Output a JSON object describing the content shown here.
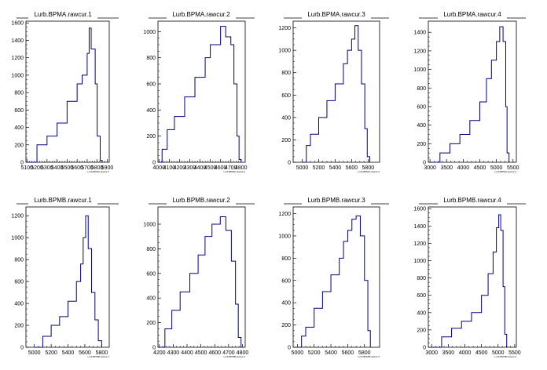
{
  "chart_data": [
    {
      "type": "histogram",
      "title": "Lurb.BPMA.rawcur.1",
      "xlabel": "Lurb.BPMA.rawcur.1",
      "xlim": [
        5090,
        5920
      ],
      "ylim": [
        0,
        1620
      ],
      "xticks": [
        5100,
        5200,
        5300,
        5400,
        5500,
        5600,
        5700,
        5800,
        5900
      ],
      "yticks": [
        0,
        200,
        400,
        600,
        800,
        1000,
        1200,
        1400,
        1600
      ],
      "series": [
        {
          "x": [
            5100,
            5200,
            5300,
            5400,
            5500,
            5600,
            5650,
            5700,
            5720,
            5740,
            5780,
            5800,
            5830,
            5850
          ],
          "y": [
            0,
            200,
            300,
            450,
            700,
            900,
            1000,
            1250,
            1540,
            1300,
            900,
            300,
            20,
            0
          ]
        }
      ]
    },
    {
      "type": "histogram",
      "title": "Lurb.BPMA.rawcur.2",
      "xlabel": "Lurb.BPMA.rawcur.2",
      "xlim": [
        3990,
        4840
      ],
      "ylim": [
        0,
        1080
      ],
      "xticks": [
        4000,
        4100,
        4200,
        4300,
        4400,
        4500,
        4600,
        4700,
        4800
      ],
      "yticks": [
        0,
        200,
        400,
        600,
        800,
        1000
      ],
      "series": [
        {
          "x": [
            4000,
            4030,
            4080,
            4150,
            4250,
            4350,
            4450,
            4500,
            4600,
            4650,
            4700,
            4730,
            4760,
            4780,
            4800
          ],
          "y": [
            0,
            100,
            250,
            350,
            500,
            650,
            800,
            900,
            1040,
            960,
            900,
            600,
            200,
            20,
            0
          ]
        }
      ]
    },
    {
      "type": "histogram",
      "title": "Lurb.BPMA.rawcur.3",
      "xlabel": "Lurb.BPMA.rawcur.3",
      "xlim": [
        4890,
        5940
      ],
      "ylim": [
        0,
        1260
      ],
      "xticks": [
        5000,
        5200,
        5400,
        5600,
        5800
      ],
      "yticks": [
        0,
        200,
        400,
        600,
        800,
        1000,
        1200
      ],
      "series": [
        {
          "x": [
            5000,
            5050,
            5100,
            5200,
            5300,
            5400,
            5500,
            5550,
            5600,
            5640,
            5680,
            5720,
            5760,
            5790,
            5820
          ],
          "y": [
            0,
            150,
            250,
            400,
            550,
            700,
            880,
            1000,
            1100,
            1220,
            1000,
            700,
            300,
            50,
            0
          ]
        }
      ]
    },
    {
      "type": "histogram",
      "title": "Lurb.BPMA.rawcur.4",
      "xlabel": "Lurb.BPMA.rawcur.4",
      "xlim": [
        2950,
        5600
      ],
      "ylim": [
        0,
        1520
      ],
      "xticks": [
        3000,
        3500,
        4000,
        4500,
        5000,
        5500
      ],
      "yticks": [
        0,
        200,
        400,
        600,
        800,
        1000,
        1200,
        1400
      ],
      "series": [
        {
          "x": [
            3000,
            3300,
            3600,
            3900,
            4200,
            4500,
            4700,
            4850,
            5000,
            5100,
            5200,
            5280,
            5320,
            5380
          ],
          "y": [
            0,
            100,
            200,
            300,
            450,
            650,
            900,
            1100,
            1300,
            1460,
            1300,
            600,
            100,
            0
          ]
        }
      ]
    },
    {
      "type": "histogram",
      "title": "Lurb.BPMB.rawcur.1",
      "xlabel": "Lurb.BPMB.rawcur.1",
      "xlim": [
        4900,
        5890
      ],
      "ylim": [
        0,
        1280
      ],
      "xticks": [
        5000,
        5200,
        5400,
        5600,
        5800
      ],
      "yticks": [
        0,
        200,
        400,
        600,
        800,
        1000,
        1200
      ],
      "series": [
        {
          "x": [
            5000,
            5100,
            5200,
            5300,
            5400,
            5500,
            5550,
            5580,
            5610,
            5640,
            5680,
            5720,
            5760,
            5800
          ],
          "y": [
            0,
            100,
            200,
            280,
            420,
            600,
            760,
            1000,
            1200,
            900,
            500,
            250,
            60,
            0
          ]
        }
      ]
    },
    {
      "type": "histogram",
      "title": "Lurb.BPMB.rawcur.2",
      "xlabel": "Lurb.BPMB.rawcur.2",
      "xlim": [
        4190,
        4820
      ],
      "ylim": [
        0,
        1140
      ],
      "xticks": [
        4200,
        4300,
        4400,
        4500,
        4600,
        4700,
        4800
      ],
      "yticks": [
        0,
        200,
        400,
        600,
        800,
        1000
      ],
      "series": [
        {
          "x": [
            4200,
            4240,
            4290,
            4350,
            4420,
            4480,
            4530,
            4580,
            4640,
            4680,
            4720,
            4750,
            4770,
            4790
          ],
          "y": [
            0,
            150,
            300,
            450,
            600,
            750,
            900,
            1000,
            1060,
            950,
            700,
            350,
            80,
            0
          ]
        }
      ]
    },
    {
      "type": "histogram",
      "title": "Lurb.BPMB.rawcur.3",
      "xlabel": "Lurb.BPMB.rawcur.3",
      "xlim": [
        4950,
        5980
      ],
      "ylim": [
        0,
        1260
      ],
      "xticks": [
        5000,
        5200,
        5400,
        5600,
        5800
      ],
      "yticks": [
        0,
        200,
        400,
        600,
        800,
        1000,
        1200
      ],
      "series": [
        {
          "x": [
            5000,
            5050,
            5100,
            5200,
            5300,
            5400,
            5500,
            5550,
            5600,
            5650,
            5700,
            5750,
            5800,
            5840,
            5870
          ],
          "y": [
            0,
            100,
            180,
            350,
            500,
            650,
            800,
            950,
            1050,
            1150,
            1180,
            1000,
            600,
            150,
            0
          ]
        }
      ]
    },
    {
      "type": "histogram",
      "title": "Lurb.BPMB.rawcur.4",
      "xlabel": "Lurb.BPMB.rawcur.4",
      "xlim": [
        2900,
        5550
      ],
      "ylim": [
        0,
        1620
      ],
      "xticks": [
        3000,
        3500,
        4000,
        4500,
        5000,
        5500
      ],
      "yticks": [
        0,
        200,
        400,
        600,
        800,
        1000,
        1200,
        1400,
        1600
      ],
      "series": [
        {
          "x": [
            3000,
            3300,
            3600,
            3900,
            4200,
            4500,
            4700,
            4850,
            4950,
            5020,
            5080,
            5150,
            5200,
            5260
          ],
          "y": [
            0,
            120,
            220,
            300,
            400,
            600,
            850,
            1100,
            1380,
            1530,
            1350,
            700,
            150,
            0
          ]
        }
      ]
    }
  ]
}
